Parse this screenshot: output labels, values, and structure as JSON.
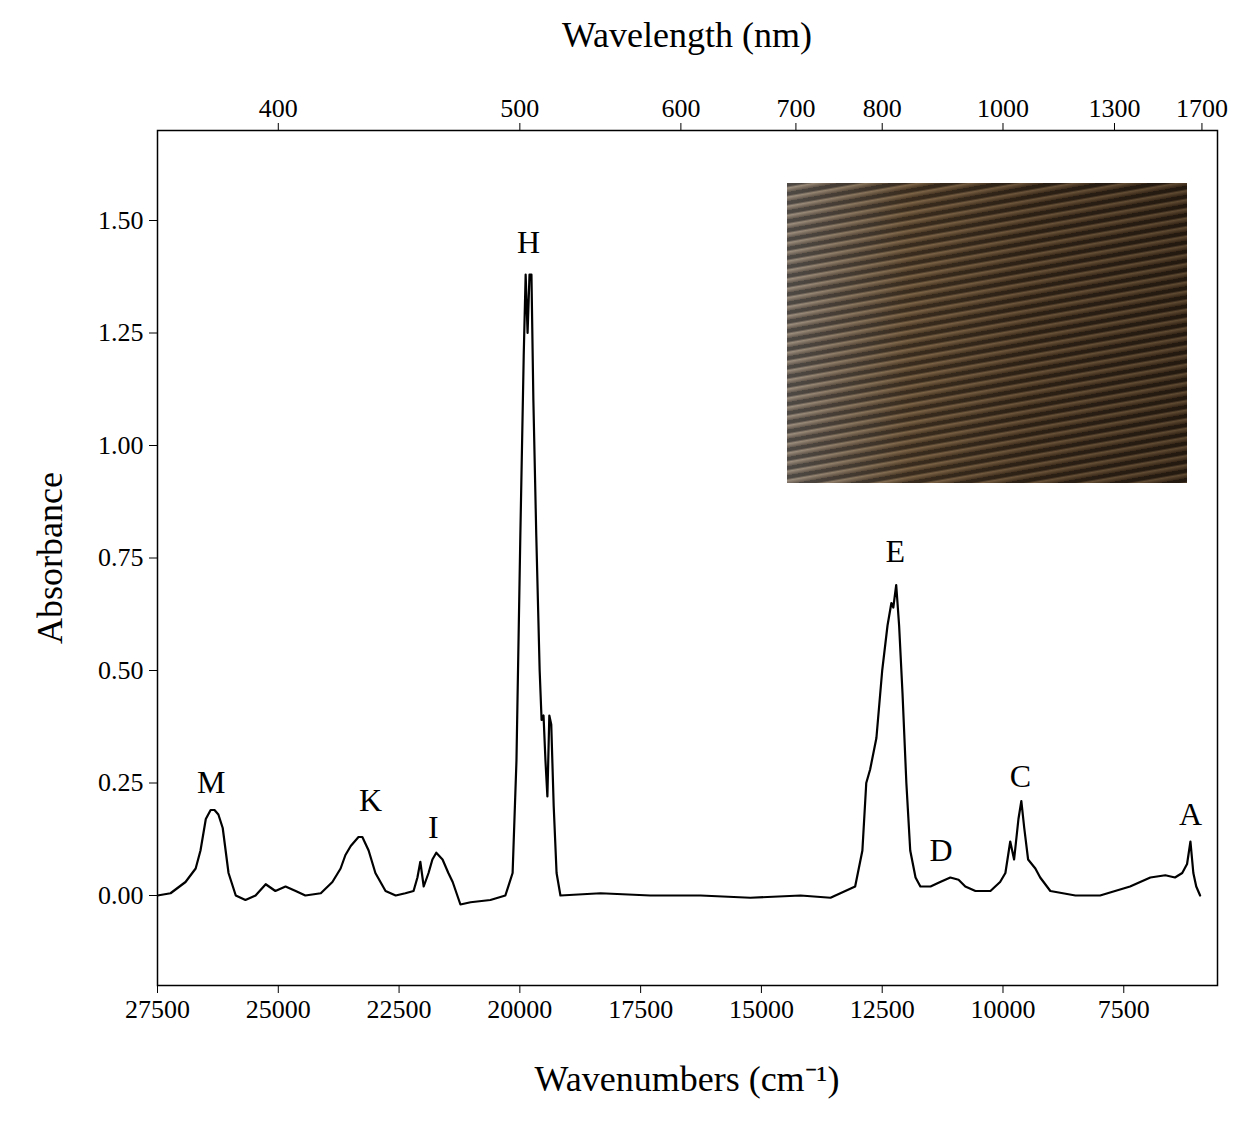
{
  "chart_data": {
    "type": "line",
    "x_label": "Wavenumbers (cm⁻¹)",
    "x2_label": "Wavelength (nm)",
    "y_label": "Absorbance",
    "color": "#000000",
    "grid": false,
    "xlim": [
      27500,
      5560
    ],
    "xticks": [
      27500,
      25000,
      22500,
      20000,
      17500,
      15000,
      12500,
      10000,
      7500
    ],
    "x2ticks": [
      {
        "value": 25000,
        "label": "400"
      },
      {
        "value": 20000,
        "label": "500"
      },
      {
        "value": 16667,
        "label": "600"
      },
      {
        "value": 14286,
        "label": "700"
      },
      {
        "value": 12500,
        "label": "800"
      },
      {
        "value": 10000,
        "label": "1000"
      },
      {
        "value": 7692,
        "label": "1300"
      },
      {
        "value": 5882,
        "label": "1700"
      }
    ],
    "ylim": [
      -0.2,
      1.7
    ],
    "yticks": [
      {
        "value": 0,
        "label": "0.00"
      },
      {
        "value": 0.25,
        "label": "0.25"
      },
      {
        "value": 0.5,
        "label": "0.50"
      },
      {
        "value": 0.75,
        "label": "0.75"
      },
      {
        "value": 1,
        "label": "1.00"
      },
      {
        "value": 1.25,
        "label": "1.25"
      },
      {
        "value": 1.5,
        "label": "1.50"
      }
    ],
    "x": [
      27500,
      27230,
      26920,
      26710,
      26610,
      26500,
      26400,
      26320,
      26240,
      26150,
      26030,
      25880,
      25680,
      25470,
      25260,
      25060,
      24850,
      24640,
      24440,
      24120,
      23880,
      23710,
      23610,
      23500,
      23340,
      23260,
      23130,
      22990,
      22780,
      22570,
      22370,
      22200,
      22120,
      22060,
      21990,
      21890,
      21810,
      21730,
      21600,
      21480,
      21390,
      21230,
      21020,
      20610,
      20300,
      20150,
      20070,
      19990,
      19920,
      19880,
      19840,
      19800,
      19760,
      19720,
      19660,
      19590,
      19550,
      19510,
      19470,
      19430,
      19390,
      19350,
      19300,
      19240,
      19160,
      18330,
      17300,
      16260,
      15230,
      14190,
      13570,
      13060,
      12910,
      12830,
      12750,
      12620,
      12500,
      12390,
      12310,
      12270,
      12210,
      12150,
      12080,
      12000,
      11920,
      11810,
      11710,
      11500,
      11300,
      11090,
      10920,
      10780,
      10570,
      10260,
      10060,
      9950,
      9850,
      9770,
      9680,
      9620,
      9560,
      9480,
      9330,
      9230,
      9020,
      8500,
      7990,
      7370,
      6950,
      6640,
      6440,
      6290,
      6190,
      6120,
      6060,
      6000,
      5920
    ],
    "values": [
      0.0,
      0.005,
      0.03,
      0.06,
      0.1,
      0.17,
      0.19,
      0.19,
      0.18,
      0.15,
      0.05,
      0.0,
      -0.01,
      0.0,
      0.025,
      0.01,
      0.02,
      0.01,
      0.0,
      0.005,
      0.03,
      0.06,
      0.09,
      0.11,
      0.13,
      0.13,
      0.1,
      0.05,
      0.01,
      0.0,
      0.005,
      0.01,
      0.04,
      0.075,
      0.02,
      0.05,
      0.08,
      0.095,
      0.08,
      0.05,
      0.03,
      -0.02,
      -0.015,
      -0.01,
      0.0,
      0.05,
      0.3,
      0.8,
      1.2,
      1.38,
      1.25,
      1.38,
      1.38,
      1.1,
      0.8,
      0.5,
      0.39,
      0.4,
      0.3,
      0.22,
      0.4,
      0.38,
      0.2,
      0.05,
      0.0,
      0.005,
      0.0,
      0.0,
      -0.005,
      0.0,
      -0.005,
      0.02,
      0.1,
      0.25,
      0.28,
      0.35,
      0.5,
      0.6,
      0.65,
      0.64,
      0.69,
      0.6,
      0.45,
      0.25,
      0.1,
      0.04,
      0.02,
      0.02,
      0.03,
      0.04,
      0.035,
      0.02,
      0.01,
      0.01,
      0.03,
      0.05,
      0.12,
      0.08,
      0.17,
      0.21,
      0.15,
      0.08,
      0.06,
      0.04,
      0.01,
      0.0,
      0.0,
      0.02,
      0.04,
      0.045,
      0.04,
      0.05,
      0.07,
      0.12,
      0.05,
      0.02,
      0.0
    ],
    "annotations": [
      {
        "text": "M",
        "x": 26390,
        "y": 0.25
      },
      {
        "text": "K",
        "x": 23090,
        "y": 0.21
      },
      {
        "text": "I",
        "x": 21790,
        "y": 0.15
      },
      {
        "text": "H",
        "x": 19820,
        "y": 1.45
      },
      {
        "text": "E",
        "x": 12230,
        "y": 0.765
      },
      {
        "text": "D",
        "x": 11280,
        "y": 0.1
      },
      {
        "text": "C",
        "x": 9640,
        "y": 0.265
      },
      {
        "text": "A",
        "x": 6120,
        "y": 0.18
      }
    ]
  }
}
